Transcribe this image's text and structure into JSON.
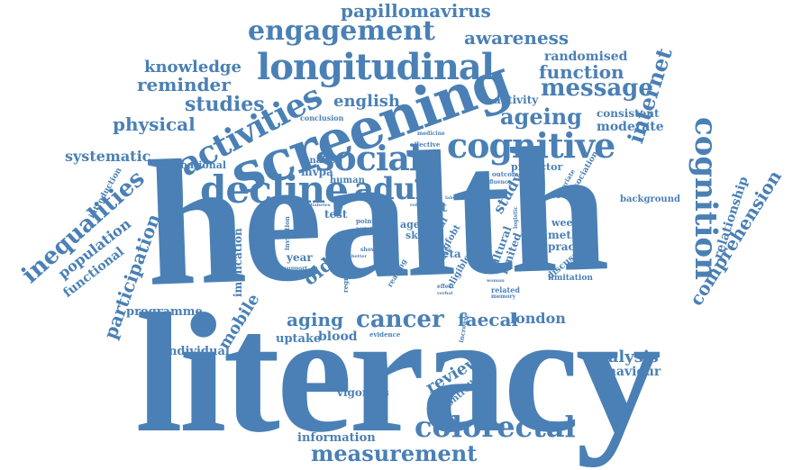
{
  "color": "#4a80b5",
  "background": "#ffffff",
  "words": {
    "health": "health",
    "literacy": "literacy",
    "screening": "screening",
    "longitudinal": "longitudinal",
    "decline": "decline",
    "adult": "adult",
    "social": "social",
    "cognitive": "cognitive",
    "activities": "activities",
    "cognition": "cognition",
    "engagement": "engagement",
    "papillomavirus": "papillomavirus",
    "awareness": "awareness",
    "randomised": "randomised",
    "function": "function",
    "message": "message",
    "knowledge": "knowledge",
    "reminder": "reminder",
    "studies": "studies",
    "english": "english",
    "physical": "physical",
    "ageing": "ageing",
    "activity": "activity",
    "consistent": "consistent",
    "moderate": "moderate",
    "internet": "internet",
    "systematic": "systematic",
    "national": "national",
    "analyse": "analyse",
    "mvpa": "mvpa",
    "human": "human",
    "cohort": "cohort",
    "conclusion": "conclusion",
    "medicine": "medicine",
    "effective": "effective",
    "outcome": "outcome",
    "predictor": "predictor",
    "fluency": "fluency",
    "association": "association",
    "covariate": "covariate",
    "background": "background",
    "relationship": "relationship",
    "comprehension": "comprehension",
    "inequalities": "inequalities",
    "introduction": "introduction",
    "population": "population",
    "functional": "functional",
    "participation": "participation",
    "test": "test",
    "text": "text",
    "study": "study",
    "aged": "aged",
    "skill": "skill",
    "trial": "trial",
    "point": "point",
    "period": "period",
    "diabetes": "diabetes",
    "time": "time",
    "bcap": "bcap",
    "gfobt": "gfobt",
    "week": "week",
    "role": "role",
    "label": "label",
    "invitation": "invitation",
    "cultural": "cultural",
    "limited": "limited",
    "logistic": "logistic",
    "weekly": "weekly",
    "method": "method",
    "practice": "practice",
    "discussion": "discussion",
    "limitation": "limitation",
    "implication": "implication",
    "year": "year",
    "older": "older",
    "meta": "meta",
    "data": "data",
    "result": "result",
    "eligible": "eligible",
    "show": "show",
    "tricss": "tricss",
    "better": "better",
    "support": "support",
    "regression": "regression",
    "reading": "reading",
    "related": "related",
    "memory": "memory",
    "woman": "woman",
    "effect": "effect",
    "verbal": "verbal",
    "programme": "programme",
    "mobile": "mobile",
    "aging": "aging",
    "cancer": "cancer",
    "faecal": "faecal",
    "london": "london",
    "individual": "individual",
    "uptake": "uptake",
    "blood": "blood",
    "evidence": "evidence",
    "increase": "increase",
    "analysis": "analysis",
    "behaviour": "behaviour",
    "review": "review",
    "controlled": "controlled",
    "vigorous": "vigorous",
    "colorectal": "colorectal",
    "information": "information",
    "measurement": "measurement"
  }
}
